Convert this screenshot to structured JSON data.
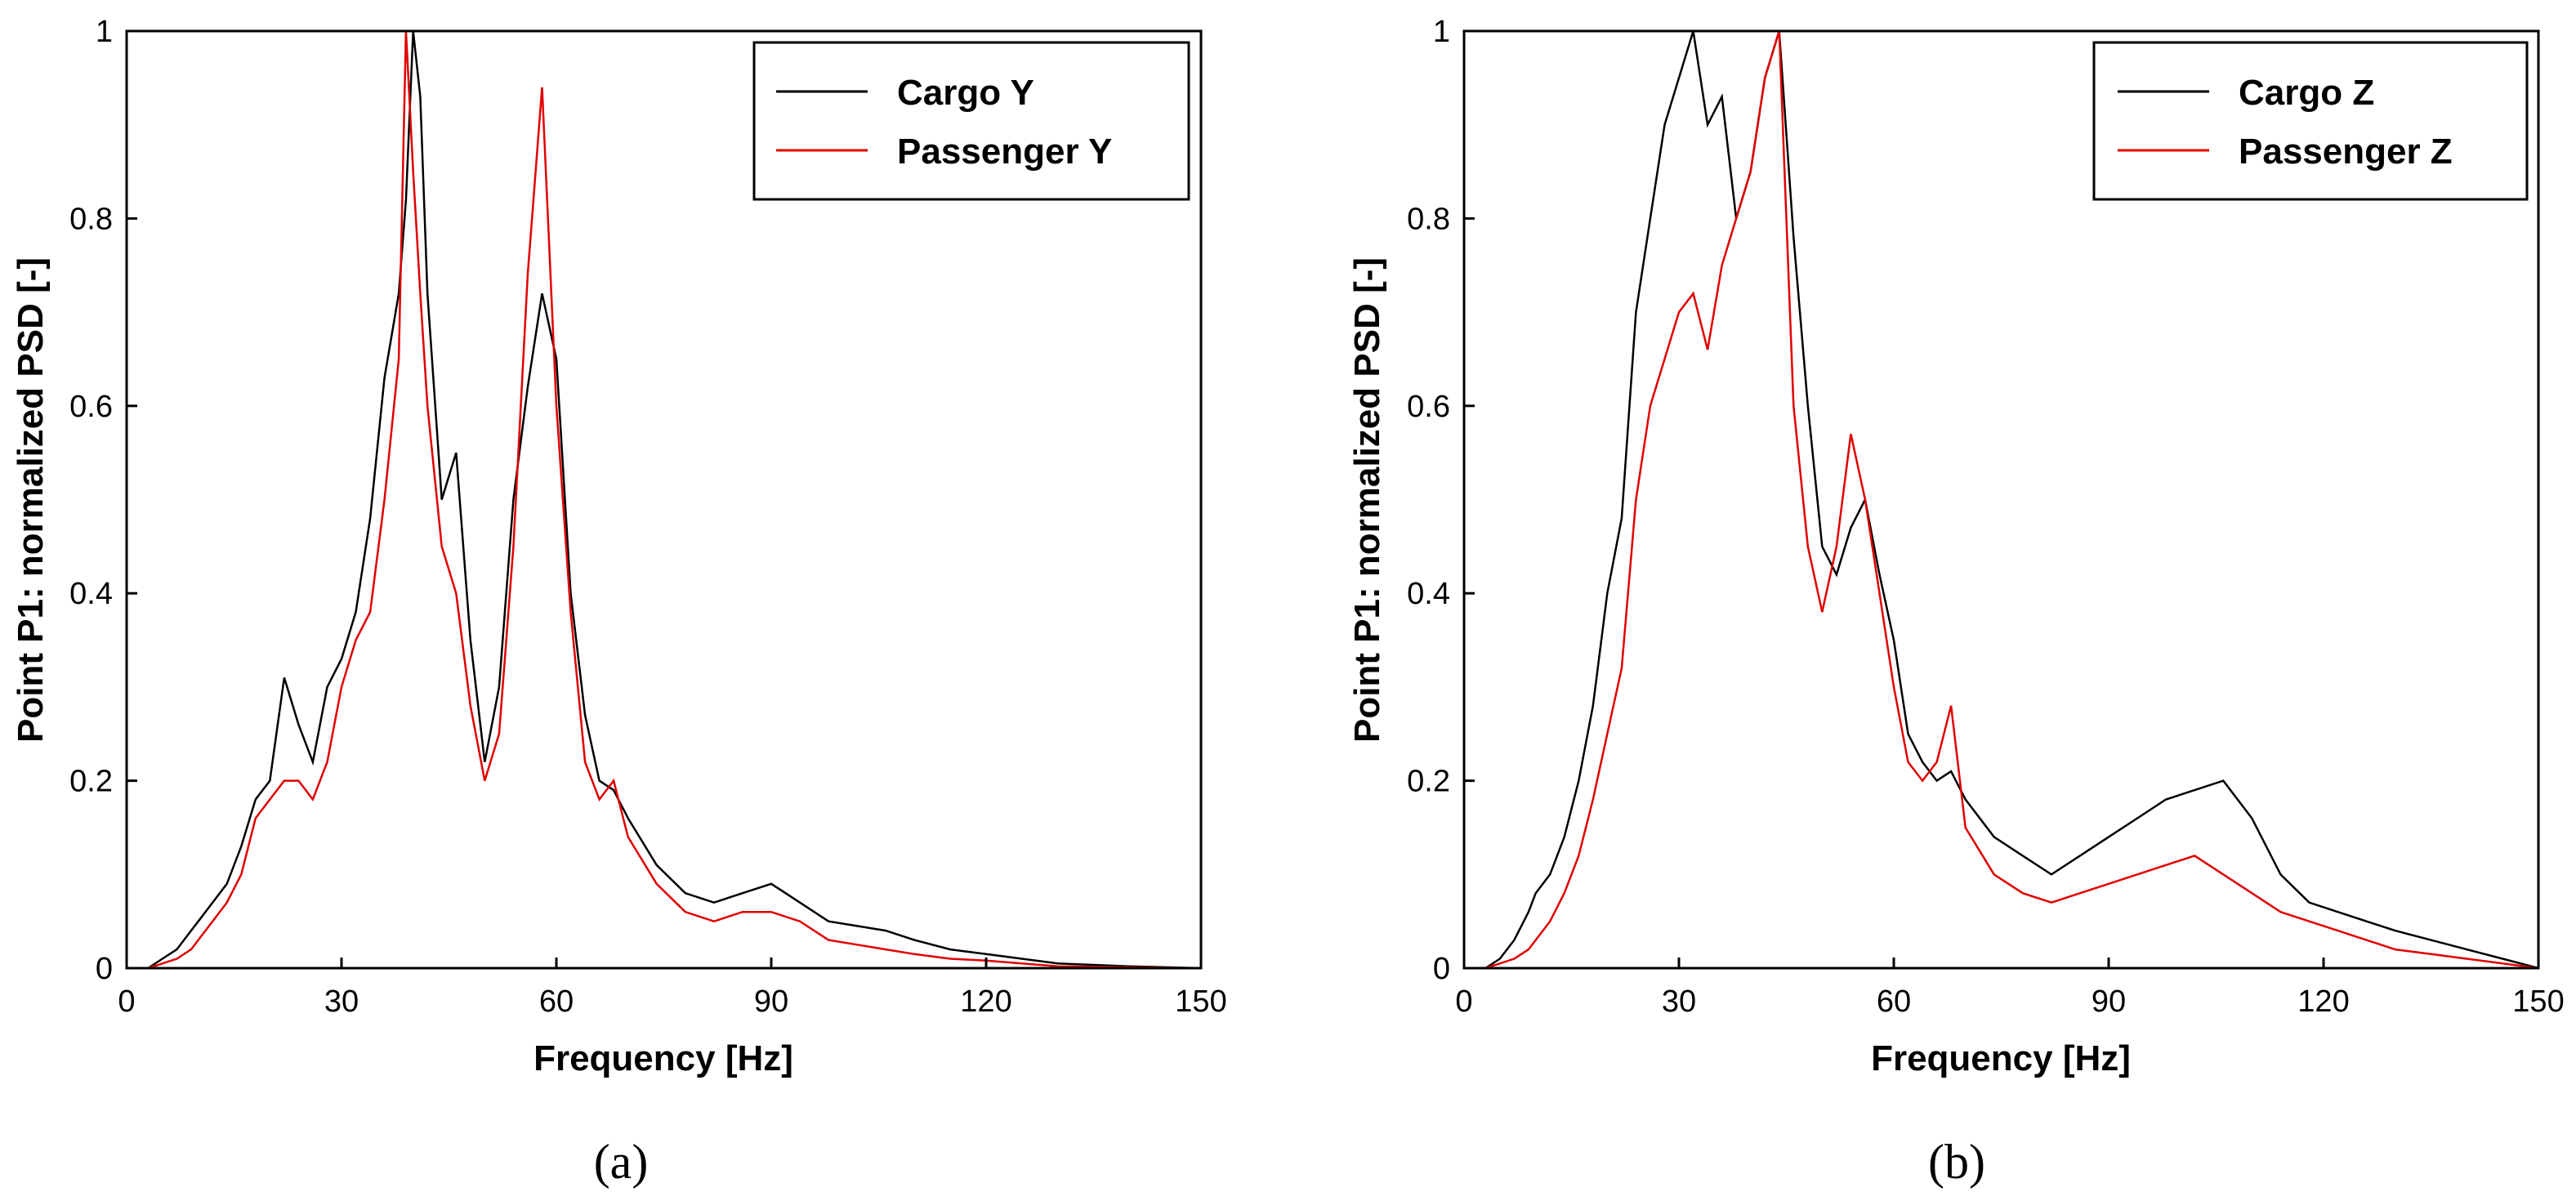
{
  "chart_data": [
    {
      "type": "line",
      "panel_label": "(a)",
      "xlabel": "Frequency [Hz]",
      "ylabel": "Point P1: normalized PSD [-]",
      "xlim": [
        0,
        150
      ],
      "ylim": [
        0,
        1
      ],
      "xticks": [
        0,
        30,
        60,
        90,
        120,
        150
      ],
      "yticks": [
        0,
        0.2,
        0.4,
        0.6,
        0.8,
        1
      ],
      "ytick_labels": [
        "0",
        "0.2",
        "0.4",
        "0.6",
        "0.8",
        "1"
      ],
      "legend_position": "top-right",
      "series": [
        {
          "name": "Cargo Y",
          "color": "#000000",
          "x": [
            0,
            3,
            5,
            7,
            9,
            10,
            12,
            14,
            16,
            18,
            20,
            22,
            24,
            26,
            28,
            30,
            32,
            34,
            36,
            38,
            39,
            40,
            41,
            42,
            44,
            46,
            48,
            50,
            52,
            54,
            56,
            58,
            60,
            62,
            64,
            66,
            68,
            70,
            74,
            78,
            82,
            86,
            90,
            94,
            98,
            102,
            106,
            110,
            115,
            120,
            125,
            130,
            140,
            150
          ],
          "y": [
            0,
            0,
            0.01,
            0.02,
            0.04,
            0.05,
            0.07,
            0.09,
            0.13,
            0.18,
            0.2,
            0.31,
            0.26,
            0.22,
            0.3,
            0.33,
            0.38,
            0.48,
            0.63,
            0.72,
            0.82,
            1.0,
            0.93,
            0.72,
            0.5,
            0.55,
            0.35,
            0.22,
            0.3,
            0.5,
            0.62,
            0.72,
            0.65,
            0.4,
            0.27,
            0.2,
            0.19,
            0.16,
            0.11,
            0.08,
            0.07,
            0.08,
            0.09,
            0.07,
            0.05,
            0.045,
            0.04,
            0.03,
            0.02,
            0.015,
            0.01,
            0.005,
            0.002,
            0
          ]
        },
        {
          "name": "Passenger Y",
          "color": "#e00000",
          "x": [
            0,
            3,
            5,
            7,
            9,
            10,
            12,
            14,
            16,
            18,
            20,
            22,
            24,
            26,
            28,
            30,
            32,
            34,
            36,
            38,
            39,
            40,
            41,
            42,
            44,
            46,
            48,
            50,
            52,
            54,
            56,
            58,
            60,
            62,
            64,
            66,
            68,
            70,
            74,
            78,
            82,
            86,
            90,
            94,
            98,
            102,
            106,
            110,
            115,
            120,
            125,
            130,
            140,
            150
          ],
          "y": [
            0,
            0,
            0.005,
            0.01,
            0.02,
            0.03,
            0.05,
            0.07,
            0.1,
            0.16,
            0.18,
            0.2,
            0.2,
            0.18,
            0.22,
            0.3,
            0.35,
            0.38,
            0.5,
            0.65,
            1.0,
            0.85,
            0.72,
            0.6,
            0.45,
            0.4,
            0.28,
            0.2,
            0.25,
            0.45,
            0.74,
            0.94,
            0.6,
            0.38,
            0.22,
            0.18,
            0.2,
            0.14,
            0.09,
            0.06,
            0.05,
            0.06,
            0.06,
            0.05,
            0.03,
            0.025,
            0.02,
            0.015,
            0.01,
            0.008,
            0.005,
            0.002,
            0.001,
            0
          ]
        }
      ]
    },
    {
      "type": "line",
      "panel_label": "(b)",
      "xlabel": "Frequency [Hz]",
      "ylabel": "Point P1: normalized PSD [-]",
      "xlim": [
        0,
        150
      ],
      "ylim": [
        0,
        1
      ],
      "xticks": [
        0,
        30,
        60,
        90,
        120,
        150
      ],
      "yticks": [
        0,
        0.2,
        0.4,
        0.6,
        0.8,
        1
      ],
      "ytick_labels": [
        "0",
        "0.2",
        "0.4",
        "0.6",
        "0.8",
        "1"
      ],
      "legend_position": "top-right",
      "series": [
        {
          "name": "Cargo Z",
          "color": "#000000",
          "x": [
            0,
            3,
            5,
            7,
            9,
            10,
            12,
            14,
            16,
            18,
            20,
            22,
            24,
            26,
            28,
            30,
            32,
            34,
            36,
            38,
            40,
            42,
            44,
            46,
            48,
            50,
            52,
            54,
            56,
            58,
            60,
            62,
            64,
            66,
            68,
            70,
            74,
            78,
            82,
            86,
            90,
            94,
            98,
            102,
            106,
            110,
            114,
            118,
            122,
            126,
            130,
            135,
            140,
            145,
            150
          ],
          "y": [
            0,
            0,
            0.01,
            0.03,
            0.06,
            0.08,
            0.1,
            0.14,
            0.2,
            0.28,
            0.4,
            0.48,
            0.7,
            0.8,
            0.9,
            0.95,
            1.0,
            0.9,
            0.93,
            0.8,
            0.85,
            0.95,
            1.0,
            0.78,
            0.6,
            0.45,
            0.42,
            0.47,
            0.5,
            0.42,
            0.35,
            0.25,
            0.22,
            0.2,
            0.21,
            0.18,
            0.14,
            0.12,
            0.1,
            0.12,
            0.14,
            0.16,
            0.18,
            0.19,
            0.2,
            0.16,
            0.1,
            0.07,
            0.06,
            0.05,
            0.04,
            0.03,
            0.02,
            0.01,
            0
          ]
        },
        {
          "name": "Passenger Z",
          "color": "#e00000",
          "x": [
            0,
            3,
            5,
            7,
            9,
            10,
            12,
            14,
            16,
            18,
            20,
            22,
            24,
            26,
            28,
            30,
            32,
            34,
            36,
            38,
            40,
            42,
            44,
            46,
            48,
            50,
            52,
            54,
            56,
            58,
            60,
            62,
            64,
            66,
            68,
            70,
            74,
            78,
            82,
            86,
            90,
            94,
            98,
            102,
            106,
            110,
            114,
            118,
            122,
            126,
            130,
            135,
            140,
            145,
            150
          ],
          "y": [
            0,
            0,
            0.005,
            0.01,
            0.02,
            0.03,
            0.05,
            0.08,
            0.12,
            0.18,
            0.25,
            0.32,
            0.5,
            0.6,
            0.65,
            0.7,
            0.72,
            0.66,
            0.75,
            0.8,
            0.85,
            0.95,
            1.0,
            0.6,
            0.45,
            0.38,
            0.45,
            0.57,
            0.5,
            0.4,
            0.3,
            0.22,
            0.2,
            0.22,
            0.28,
            0.15,
            0.1,
            0.08,
            0.07,
            0.08,
            0.09,
            0.1,
            0.11,
            0.12,
            0.1,
            0.08,
            0.06,
            0.05,
            0.04,
            0.03,
            0.02,
            0.015,
            0.01,
            0.005,
            0
          ]
        }
      ]
    }
  ]
}
